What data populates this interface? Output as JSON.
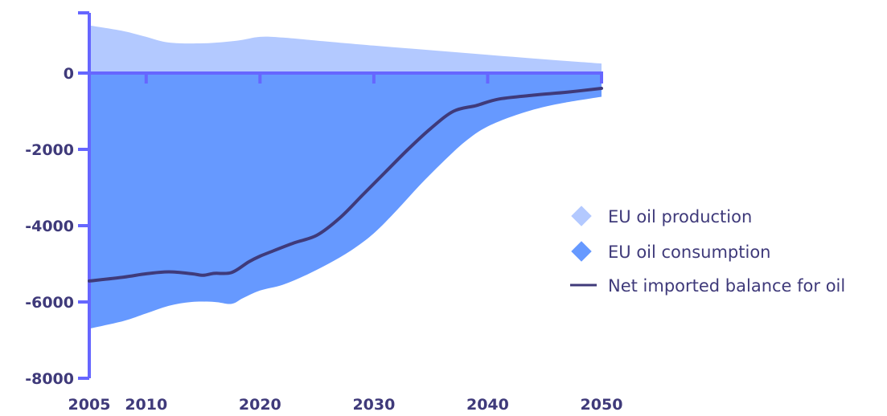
{
  "chart_data": {
    "type": "area",
    "title": "",
    "xlabel": "",
    "ylabel": "",
    "xlim": [
      2005,
      2050
    ],
    "ylim": [
      -8000,
      1500
    ],
    "x_ticks": [
      2005,
      2010,
      2020,
      2030,
      2040,
      2050
    ],
    "x_tick_labels": [
      "2005",
      "2010",
      "2020",
      "2030",
      "2040",
      "2050"
    ],
    "y_ticks": [
      0,
      -2000,
      -4000,
      -6000,
      -8000
    ],
    "y_tick_labels": [
      "0",
      "-2000",
      "-4000",
      "-6000",
      "-8000"
    ],
    "grid": false,
    "legend_position": "right",
    "series": [
      {
        "name": "EU oil production",
        "kind": "area",
        "color": "#b3c9ff",
        "x": [
          2005,
          2008,
          2010,
          2012,
          2015,
          2018,
          2020,
          2022,
          2025,
          2030,
          2035,
          2040,
          2045,
          2050
        ],
        "y": [
          1250,
          1100,
          950,
          800,
          780,
          850,
          950,
          930,
          850,
          720,
          600,
          480,
          360,
          250
        ]
      },
      {
        "name": "EU oil consumption",
        "kind": "area",
        "color": "#6699ff",
        "x": [
          2005,
          2008,
          2010,
          2012,
          2014,
          2016,
          2017.5,
          2018.5,
          2020,
          2022,
          2024,
          2026,
          2028,
          2030,
          2032,
          2034,
          2036,
          2038,
          2040,
          2043,
          2046,
          2050
        ],
        "y": [
          -6700,
          -6500,
          -6300,
          -6100,
          -6000,
          -6000,
          -6050,
          -5900,
          -5700,
          -5550,
          -5300,
          -5000,
          -4650,
          -4200,
          -3600,
          -2950,
          -2350,
          -1800,
          -1400,
          -1050,
          -820,
          -620
        ]
      },
      {
        "name": "Net imported balance for oil",
        "kind": "line",
        "color": "#3f3a7a",
        "x": [
          2005,
          2008,
          2010,
          2012,
          2014,
          2015,
          2016,
          2017.5,
          2019,
          2020,
          2021,
          2023,
          2025,
          2027,
          2029,
          2031,
          2033,
          2035,
          2037,
          2039,
          2041,
          2044,
          2047,
          2050
        ],
        "y": [
          -5450,
          -5350,
          -5260,
          -5210,
          -5260,
          -5300,
          -5250,
          -5230,
          -4950,
          -4800,
          -4680,
          -4450,
          -4250,
          -3800,
          -3200,
          -2600,
          -2000,
          -1450,
          -1000,
          -850,
          -680,
          -580,
          -500,
          -400
        ]
      }
    ]
  },
  "legend": {
    "items": [
      {
        "label": "EU oil production",
        "color": "#b3c9ff",
        "marker": "diamond"
      },
      {
        "label": "EU oil consumption",
        "color": "#6699ff",
        "marker": "diamond"
      },
      {
        "label": "Net imported balance for oil",
        "color": "#3f3a7a",
        "marker": "line"
      }
    ]
  },
  "colors": {
    "axis": "#6666ff",
    "text": "#3f3a7a"
  }
}
